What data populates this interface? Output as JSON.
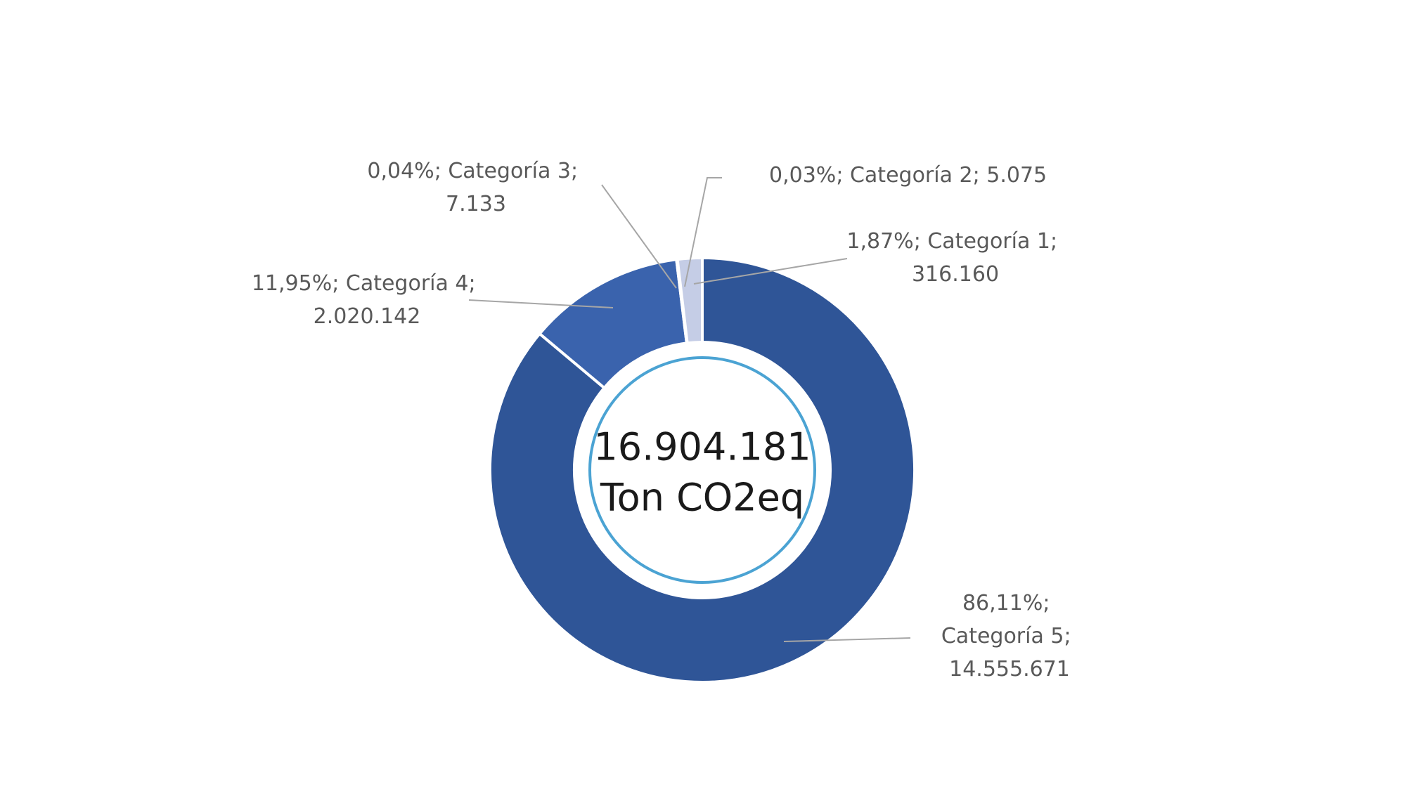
{
  "chart_data": {
    "type": "donut",
    "categories": [
      "Categoría 5",
      "Categoría 4",
      "Categoría 3",
      "Categoría 2",
      "Categoría 1"
    ],
    "values": [
      14555671,
      2020142,
      7133,
      5075,
      316160
    ],
    "value_labels": [
      "14.555.671",
      "2.020.142",
      "7.133",
      "5.075",
      "316.160"
    ],
    "percent_labels": [
      "86,11%",
      "11,95%",
      "0,04%",
      "0,03%",
      "1,87%"
    ],
    "label_separator": "; ",
    "colors": [
      "#2f5597",
      "#3a63ad",
      "#7f9bd0",
      "#a9b9df",
      "#c5cde6"
    ],
    "center_label": "16.904.181",
    "center_unit": "Ton CO2eq"
  }
}
